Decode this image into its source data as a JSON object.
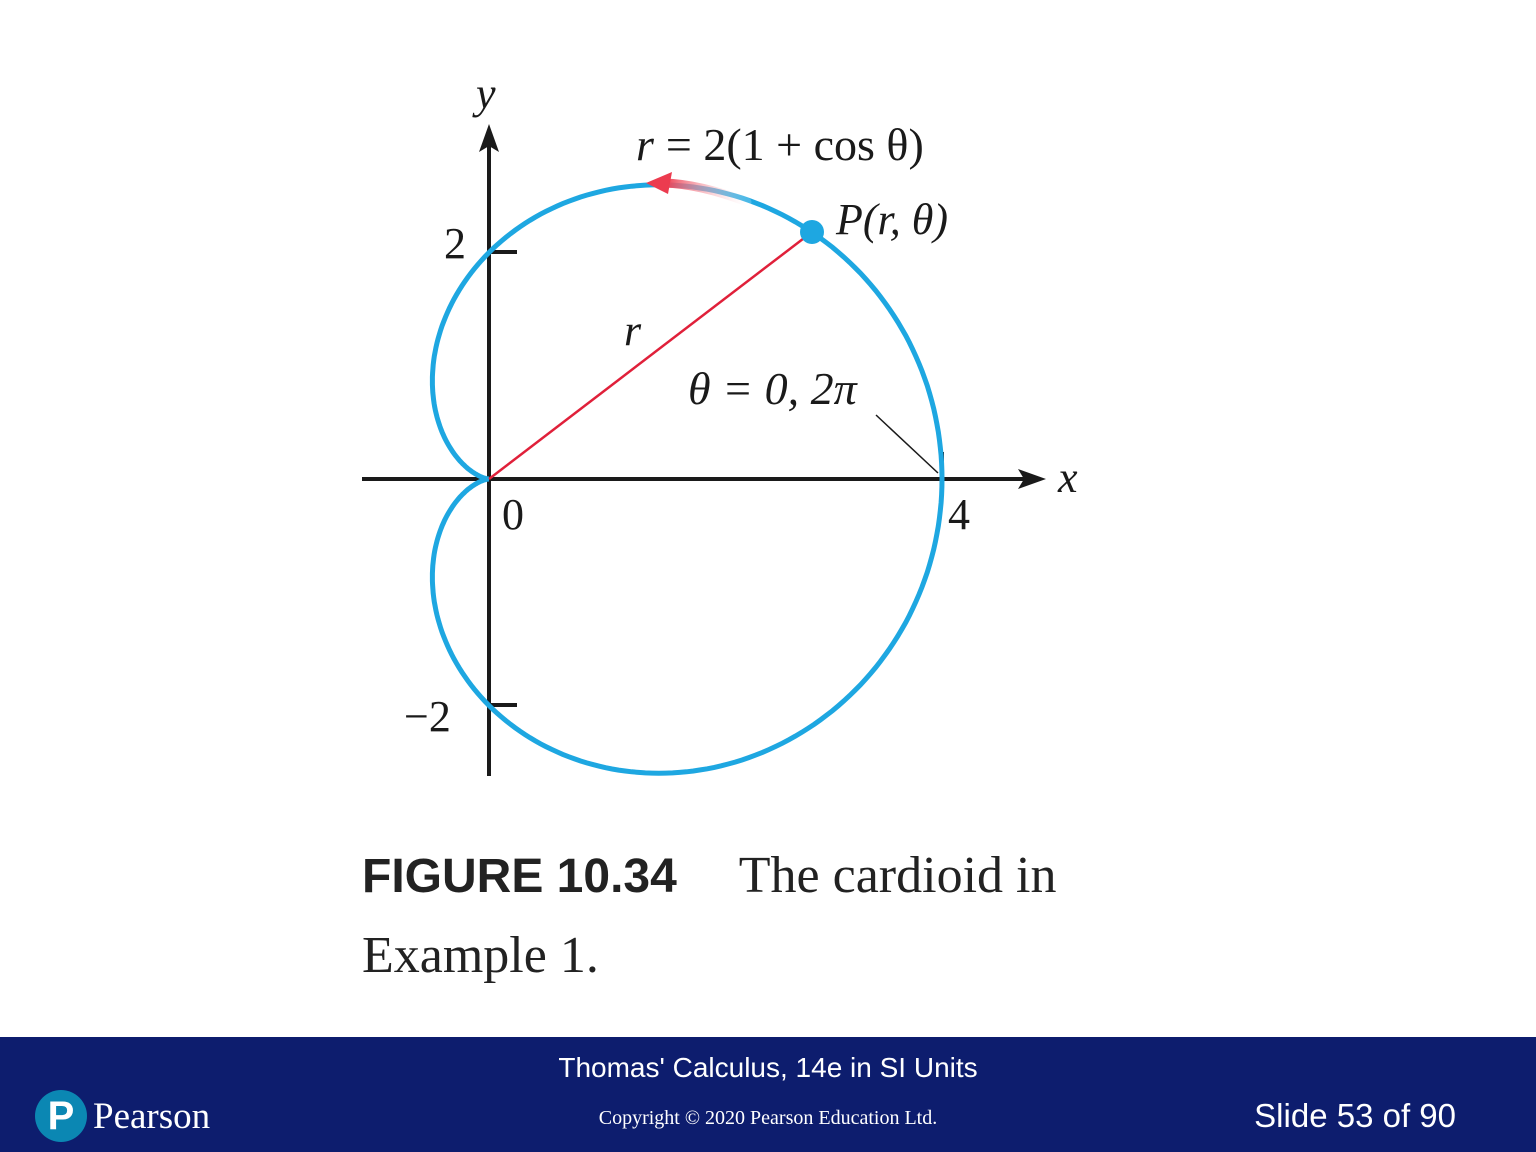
{
  "figure": {
    "axis_y_label": "y",
    "axis_x_label": "x",
    "tick_y_pos": "2",
    "tick_y_neg": "−2",
    "tick_x_origin": "0",
    "tick_x_four": "4",
    "equation_lhs": "r",
    "equation_rhs": "= 2(1 + cos θ)",
    "point_label": "P(r, θ)",
    "radius_label": "r",
    "angle_label": "θ = 0, 2π",
    "curve_color": "#1ea7e1",
    "radius_color": "#e0203a",
    "arrow_color": "#ec3b4f"
  },
  "caption": {
    "label": "FIGURE 10.34",
    "text_line1": "The cardioid in",
    "text_line2": "Example 1."
  },
  "footer": {
    "book_title": "Thomas' Calculus, 14e in SI Units",
    "copyright": "Copyright © 2020 Pearson Education Ltd.",
    "slide_counter": "Slide 53 of 90",
    "logo_letter": "P",
    "logo_text": "Pearson",
    "background_color": "#0d1d6e",
    "logo_color": "#0b87b3"
  }
}
